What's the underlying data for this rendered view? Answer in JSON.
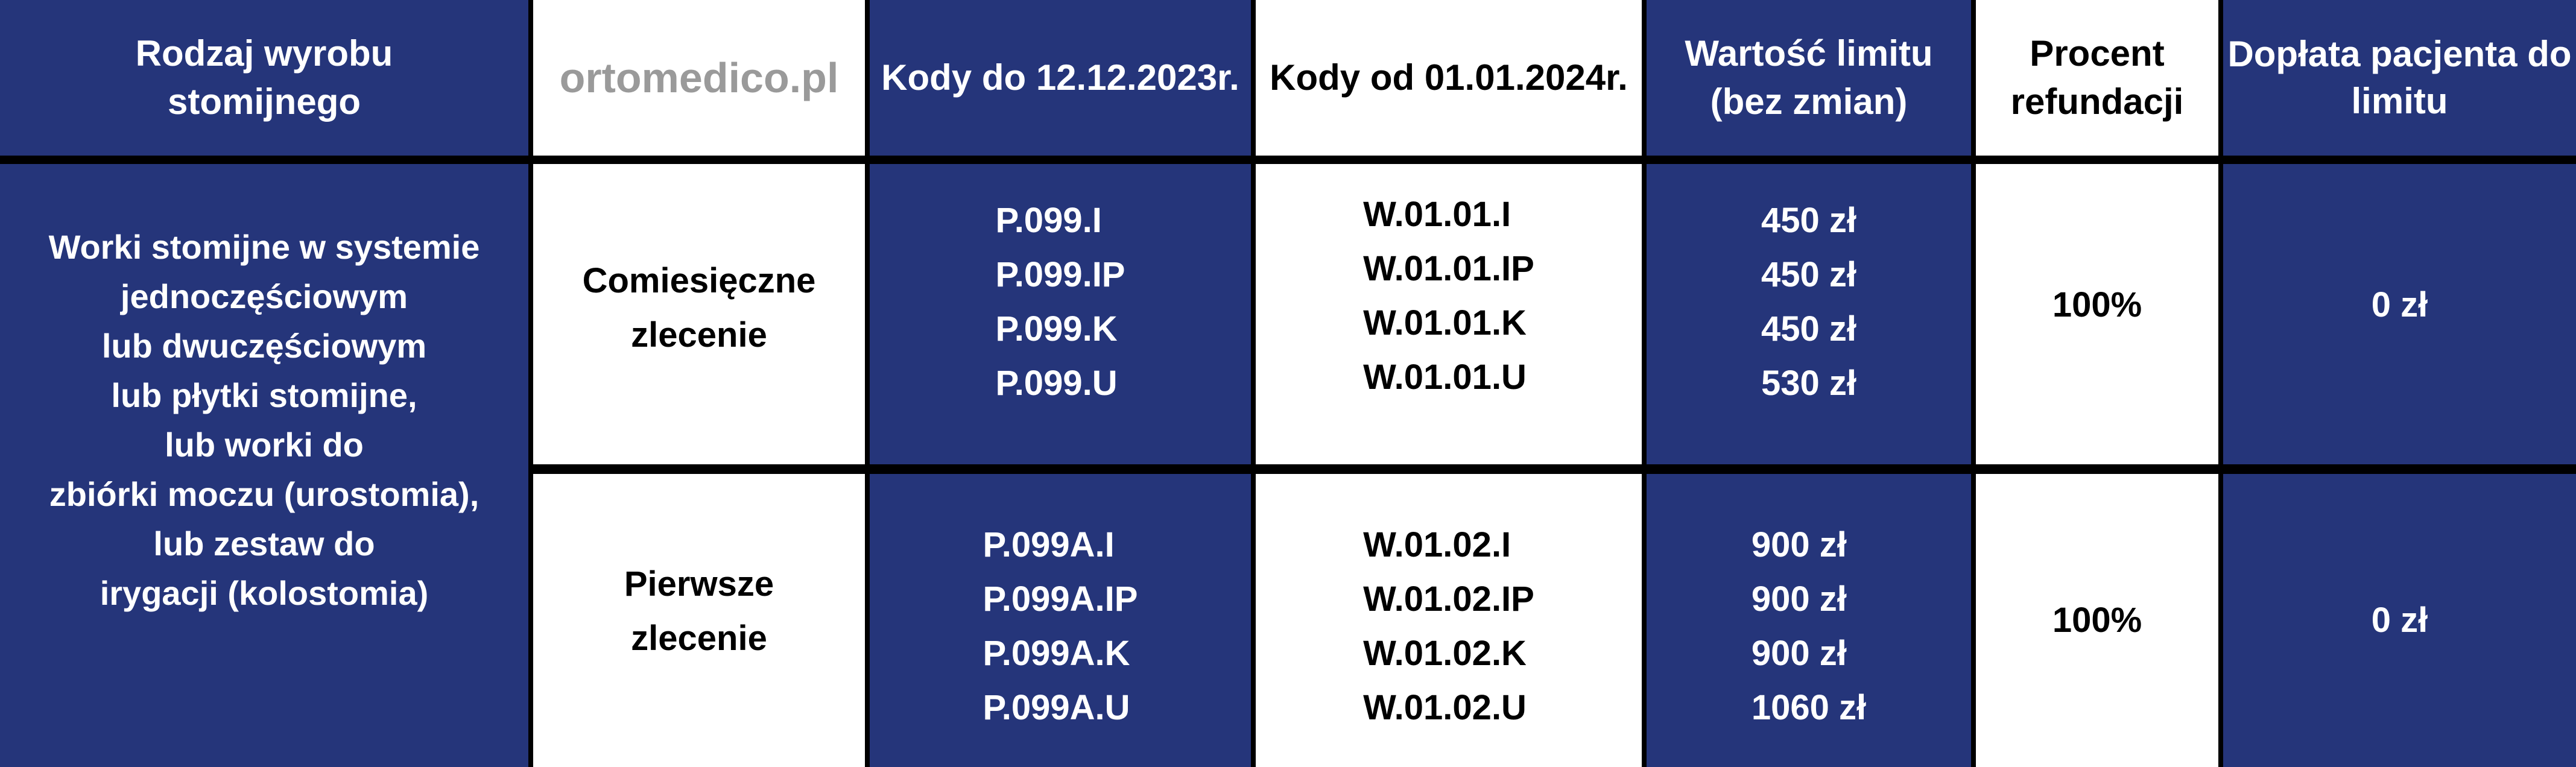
{
  "colors": {
    "blue": "#25357a",
    "white": "#ffffff",
    "border": "#000000"
  },
  "header": {
    "col1": "Rodzaj wyrobu stomijnego",
    "col2": "",
    "col3": "Kody do 12.12.2023r.",
    "col4": "Kody od 01.01.2024r.",
    "col5": "Wartość limitu (bez zmian)",
    "col6": "Procent refundacji",
    "col7": "Dopłata pacjenta do limitu"
  },
  "product": {
    "lines": [
      "Worki stomijne w systemie",
      "jednoczęściowym",
      "lub dwuczęściowym",
      "lub płytki stomijne,",
      "lub worki do",
      "zbiórki moczu (urostomia),",
      "lub zestaw do",
      "irygacji (kolostomia)"
    ]
  },
  "rows": [
    {
      "order_type": [
        "Comiesięczne",
        "zlecenie"
      ],
      "old_codes": [
        "P.099.I",
        "P.099.IP",
        "P.099.K",
        "P.099.U"
      ],
      "new_codes": [
        "W.01.01.I",
        "W.01.01.IP",
        "W.01.01.K",
        "W.01.01.U"
      ],
      "limits": [
        "450 zł",
        "450 zł",
        "450 zł",
        "530 zł"
      ],
      "refund": "100%",
      "copay": "0 zł"
    },
    {
      "order_type": [
        "Pierwsze",
        "zlecenie"
      ],
      "old_codes": [
        "P.099A.I",
        "P.099A.IP",
        "P.099A.K",
        "P.099A.U"
      ],
      "new_codes": [
        "W.01.02.I",
        "W.01.02.IP",
        "W.01.02.K",
        "W.01.02.U"
      ],
      "limits": [
        "900 zł",
        "900 zł",
        "900 zł",
        "1060 zł"
      ],
      "refund": "100%",
      "copay": "0 zł"
    }
  ],
  "watermark": "ortomedico.pl"
}
